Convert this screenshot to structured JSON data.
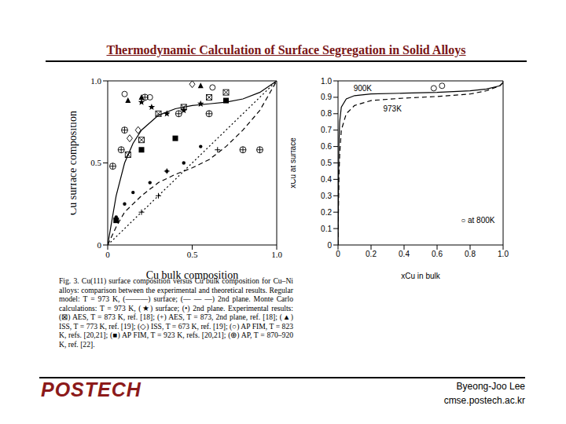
{
  "title": "Thermodynamic Calculation of Surface Segregation in Solid Alloys",
  "logo": "POSTECH",
  "author": "Byeong-Joo Lee",
  "url": "cmse.postech.ac.kr",
  "chart_data": [
    {
      "type": "scatter",
      "x_label": "Cu bulk composition",
      "y_label": "Cu surface composition",
      "xlim": [
        0,
        1
      ],
      "ylim": [
        0,
        1
      ],
      "xticks": [
        0,
        0.5,
        {
          "value": 1,
          "label": "1.0"
        }
      ],
      "yticks": [
        0,
        0.5,
        {
          "value": 1,
          "label": "1.0"
        }
      ],
      "color": "#000000",
      "caption": "Fig. 3. Cu(111) surface composition versus Cu bulk composition for Cu–Ni alloys: comparison between the experimental and theoretical results. Regular model: T = 973 K, (———) surface; (— — —) 2nd plane. Monte Carlo calculations: T = 973 K, (★) surface; (•) 2nd plane. Experimental results: (⊠) AES, T = 873 K, ref. [18]; (+) AES, T = 873, 2nd plane, ref. [18]; (▲) ISS, T = 773 K, ref. [19]; (◇) ISS, T = 673 K, ref. [19]; (○) AP FIM, T = 823 K, refs. [20,21]; (■) AP FIM, T = 923 K, refs. [20,21]; (⊕) AP, T = 870–920 K, ref. [22].",
      "series": [
        {
          "type": "line",
          "line_style": "solid",
          "x": [
            0,
            0.02,
            0.05,
            0.1,
            0.15,
            0.2,
            0.3,
            0.4,
            0.5,
            0.6,
            0.7,
            0.8,
            0.9,
            1
          ],
          "values": [
            0,
            0.12,
            0.3,
            0.5,
            0.62,
            0.7,
            0.79,
            0.83,
            0.85,
            0.86,
            0.87,
            0.89,
            0.93,
            1
          ]
        },
        {
          "type": "line",
          "line_style": "dashed",
          "x": [
            0,
            0.05,
            0.1,
            0.2,
            0.3,
            0.4,
            0.5,
            0.6,
            0.7,
            0.8,
            0.9,
            1
          ],
          "values": [
            0,
            0.11,
            0.2,
            0.3,
            0.38,
            0.43,
            0.47,
            0.52,
            0.6,
            0.7,
            0.82,
            1
          ]
        },
        {
          "type": "line",
          "line_style": "dotted",
          "x": [
            0,
            1
          ],
          "values": [
            0,
            1
          ]
        },
        {
          "type": "scatter",
          "marker": "star",
          "x": [
            0.2,
            0.26,
            0.35,
            0.45,
            0.55
          ],
          "values": [
            0.87,
            0.84,
            0.8,
            0.82,
            0.86
          ]
        },
        {
          "type": "scatter",
          "marker": "dot",
          "x": [
            0.05,
            0.1,
            0.15,
            0.25,
            0.35,
            0.45,
            0.55
          ],
          "values": [
            0.17,
            0.25,
            0.32,
            0.38,
            0.45,
            0.5,
            0.6
          ]
        },
        {
          "type": "scatter",
          "marker": "box_x",
          "x": [
            0.12,
            0.2,
            0.3,
            0.45,
            0.6,
            0.7
          ],
          "values": [
            0.55,
            0.64,
            0.8,
            0.84,
            0.9,
            0.93
          ]
        },
        {
          "type": "scatter",
          "marker": "plus",
          "x": [
            0.2,
            0.3,
            0.35,
            0.65
          ],
          "values": [
            0.2,
            0.3,
            0.45,
            0.58
          ]
        },
        {
          "type": "scatter",
          "marker": "triangle",
          "x": [
            0.12,
            0.2,
            0.55
          ],
          "values": [
            0.88,
            0.9,
            0.97
          ]
        },
        {
          "type": "scatter",
          "marker": "diamond",
          "x": [
            0.13,
            0.18,
            0.5
          ],
          "values": [
            0.65,
            0.7,
            0.98
          ]
        },
        {
          "type": "scatter",
          "marker": "circle",
          "x": [
            0.1,
            0.25,
            0.62
          ],
          "values": [
            0.92,
            0.9,
            0.96
          ]
        },
        {
          "type": "scatter",
          "marker": "square",
          "x": [
            0.05,
            0.2,
            0.4,
            0.7
          ],
          "values": [
            0.15,
            0.58,
            0.65,
            0.88
          ]
        },
        {
          "type": "scatter",
          "marker": "circle_plus",
          "x": [
            0.03,
            0.08,
            0.1,
            0.22,
            0.42,
            0.6,
            0.8,
            0.9
          ],
          "values": [
            0.48,
            0.58,
            0.7,
            0.9,
            0.8,
            0.8,
            0.58,
            0.58
          ]
        }
      ]
    },
    {
      "type": "line",
      "x_label": "xCu in bulk",
      "y_label": "xCu at surface",
      "xlim": [
        0,
        1
      ],
      "ylim": [
        0,
        1
      ],
      "xticks": [
        0,
        0.2,
        0.4,
        0.6,
        0.8,
        {
          "value": 1,
          "label": "1.0"
        }
      ],
      "yticks": [
        0,
        0.1,
        0.2,
        0.3,
        0.4,
        0.5,
        0.6,
        0.7,
        0.8,
        0.9,
        {
          "value": 1,
          "label": "1.0"
        }
      ],
      "color": "#000000",
      "series": [
        {
          "type": "line",
          "line_style": "solid",
          "x": [
            0,
            0.005,
            0.01,
            0.02,
            0.05,
            0.1,
            0.2,
            0.4,
            0.6,
            0.8,
            0.9,
            0.98,
            1,
            1
          ],
          "values": [
            0,
            0.6,
            0.75,
            0.84,
            0.89,
            0.91,
            0.92,
            0.925,
            0.93,
            0.94,
            0.95,
            0.97,
            0.99,
            1
          ]
        },
        {
          "type": "line",
          "line_style": "dashed",
          "x": [
            0,
            0.005,
            0.01,
            0.02,
            0.05,
            0.1,
            0.2,
            0.4,
            0.6,
            0.8,
            0.9,
            0.98,
            1,
            1
          ],
          "values": [
            0,
            0.4,
            0.55,
            0.7,
            0.8,
            0.85,
            0.88,
            0.895,
            0.905,
            0.92,
            0.94,
            0.97,
            0.99,
            1
          ]
        },
        {
          "type": "scatter",
          "marker": "circle",
          "x": [
            0.58,
            0.63
          ],
          "values": [
            0.955,
            0.97
          ]
        }
      ],
      "annotations": [
        {
          "text": "900K",
          "x": 0.07,
          "y": 0.955
        },
        {
          "text": "973K",
          "x": 0.25,
          "y": 0.83
        },
        {
          "text": "○ at 800K",
          "x": 0.72,
          "y": 0.15
        }
      ]
    }
  ]
}
